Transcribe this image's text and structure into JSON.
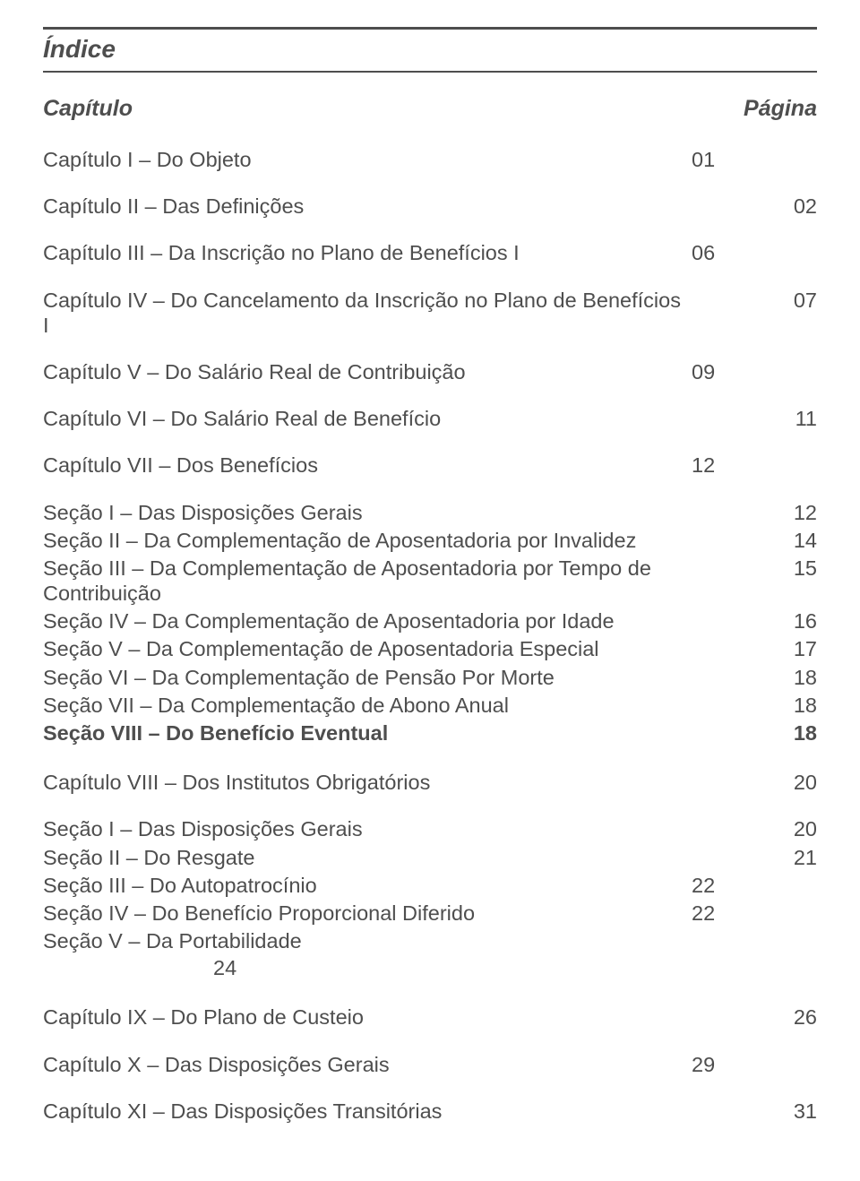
{
  "title": "Índice",
  "header": {
    "left": "Capítulo",
    "right": "Página"
  },
  "entries": [
    {
      "label": "Capítulo I – Do Objeto",
      "col1": "01",
      "col2": "",
      "kind": "chapter",
      "name": "cap1"
    },
    {
      "label": "Capítulo II – Das Definições",
      "col1": "",
      "col2": "02",
      "kind": "chapter",
      "name": "cap2"
    },
    {
      "label": "Capítulo III – Da Inscrição no Plano de Benefícios I",
      "col1": "06",
      "col2": "",
      "kind": "chapter",
      "name": "cap3"
    },
    {
      "label": "Capítulo IV – Do Cancelamento da Inscrição no Plano de  Benefícios I",
      "col1": "",
      "col2": "07",
      "kind": "chapter",
      "name": "cap4"
    },
    {
      "label": "Capítulo V – Do Salário Real de Contribuição",
      "col1": "09",
      "col2": "",
      "kind": "chapter",
      "name": "cap5"
    },
    {
      "label": "Capítulo VI – Do Salário Real de Benefício",
      "col1": "",
      "col2": "11",
      "kind": "chapter",
      "name": "cap6"
    },
    {
      "label": "Capítulo VII – Dos Benefícios",
      "col1": "12",
      "col2": "",
      "kind": "chapter",
      "name": "cap7"
    },
    {
      "label": "Seção I – Das Disposições Gerais",
      "col1": "",
      "col2": "12",
      "kind": "section",
      "name": "cap7-sec1"
    },
    {
      "label": "Seção II – Da Complementação de Aposentadoria por Invalidez",
      "col1": "",
      "col2": "14",
      "kind": "section",
      "name": "cap7-sec2"
    },
    {
      "label": "Seção III – Da Complementação de Aposentadoria por Tempo de Contribuição",
      "col1": "",
      "col2": "15",
      "kind": "section",
      "name": "cap7-sec3"
    },
    {
      "label": "Seção IV – Da Complementação de Aposentadoria por Idade",
      "col1": "",
      "col2": "16",
      "kind": "section",
      "name": "cap7-sec4"
    },
    {
      "label": "Seção V – Da Complementação de Aposentadoria Especial",
      "col1": "",
      "col2": "17",
      "kind": "section",
      "name": "cap7-sec5"
    },
    {
      "label": "Seção VI – Da Complementação de Pensão Por Morte",
      "col1": "",
      "col2": "18",
      "kind": "section",
      "name": "cap7-sec6"
    },
    {
      "label": "Seção VII – Da Complementação de Abono Anual",
      "col1": "",
      "col2": "18",
      "kind": "section",
      "name": "cap7-sec7"
    },
    {
      "label": "Seção VIII – Do Benefício Eventual",
      "col1": "",
      "col2": "18",
      "kind": "section",
      "bold": true,
      "name": "cap7-sec8",
      "gapAfter": true
    },
    {
      "label": "Capítulo VIII – Dos Institutos Obrigatórios",
      "col1": "",
      "col2": "20",
      "kind": "chapter",
      "name": "cap8"
    },
    {
      "label": "Seção I – Das Disposições Gerais",
      "col1": "",
      "col2": "20",
      "kind": "section",
      "name": "cap8-sec1"
    },
    {
      "label": "Seção II – Do Resgate",
      "col1": "",
      "col2": "21",
      "kind": "section",
      "name": "cap8-sec2"
    },
    {
      "label": "Seção III – Do Autopatrocínio",
      "col1": "22",
      "col2": "",
      "kind": "section",
      "name": "cap8-sec3"
    },
    {
      "label": "Seção IV – Do Benefício Proporcional Diferido",
      "col1": "22",
      "col2": "",
      "kind": "section",
      "name": "cap8-sec4"
    },
    {
      "label": "Seção V – Da Portabilidade",
      "col1": "",
      "col2": "",
      "kind": "section",
      "name": "cap8-sec5",
      "wrapPage": "24",
      "gapAfter": true
    },
    {
      "label": "Capítulo IX – Do Plano de Custeio",
      "col1": "",
      "col2": "26",
      "kind": "chapter",
      "name": "cap9"
    },
    {
      "label": "Capítulo X – Das Disposições Gerais",
      "col1": "29",
      "col2": "",
      "kind": "chapter",
      "name": "cap10"
    },
    {
      "label": "Capítulo XI – Das Disposições Transitórias",
      "col1": "",
      "col2": "31",
      "kind": "chapter",
      "name": "cap11"
    }
  ]
}
